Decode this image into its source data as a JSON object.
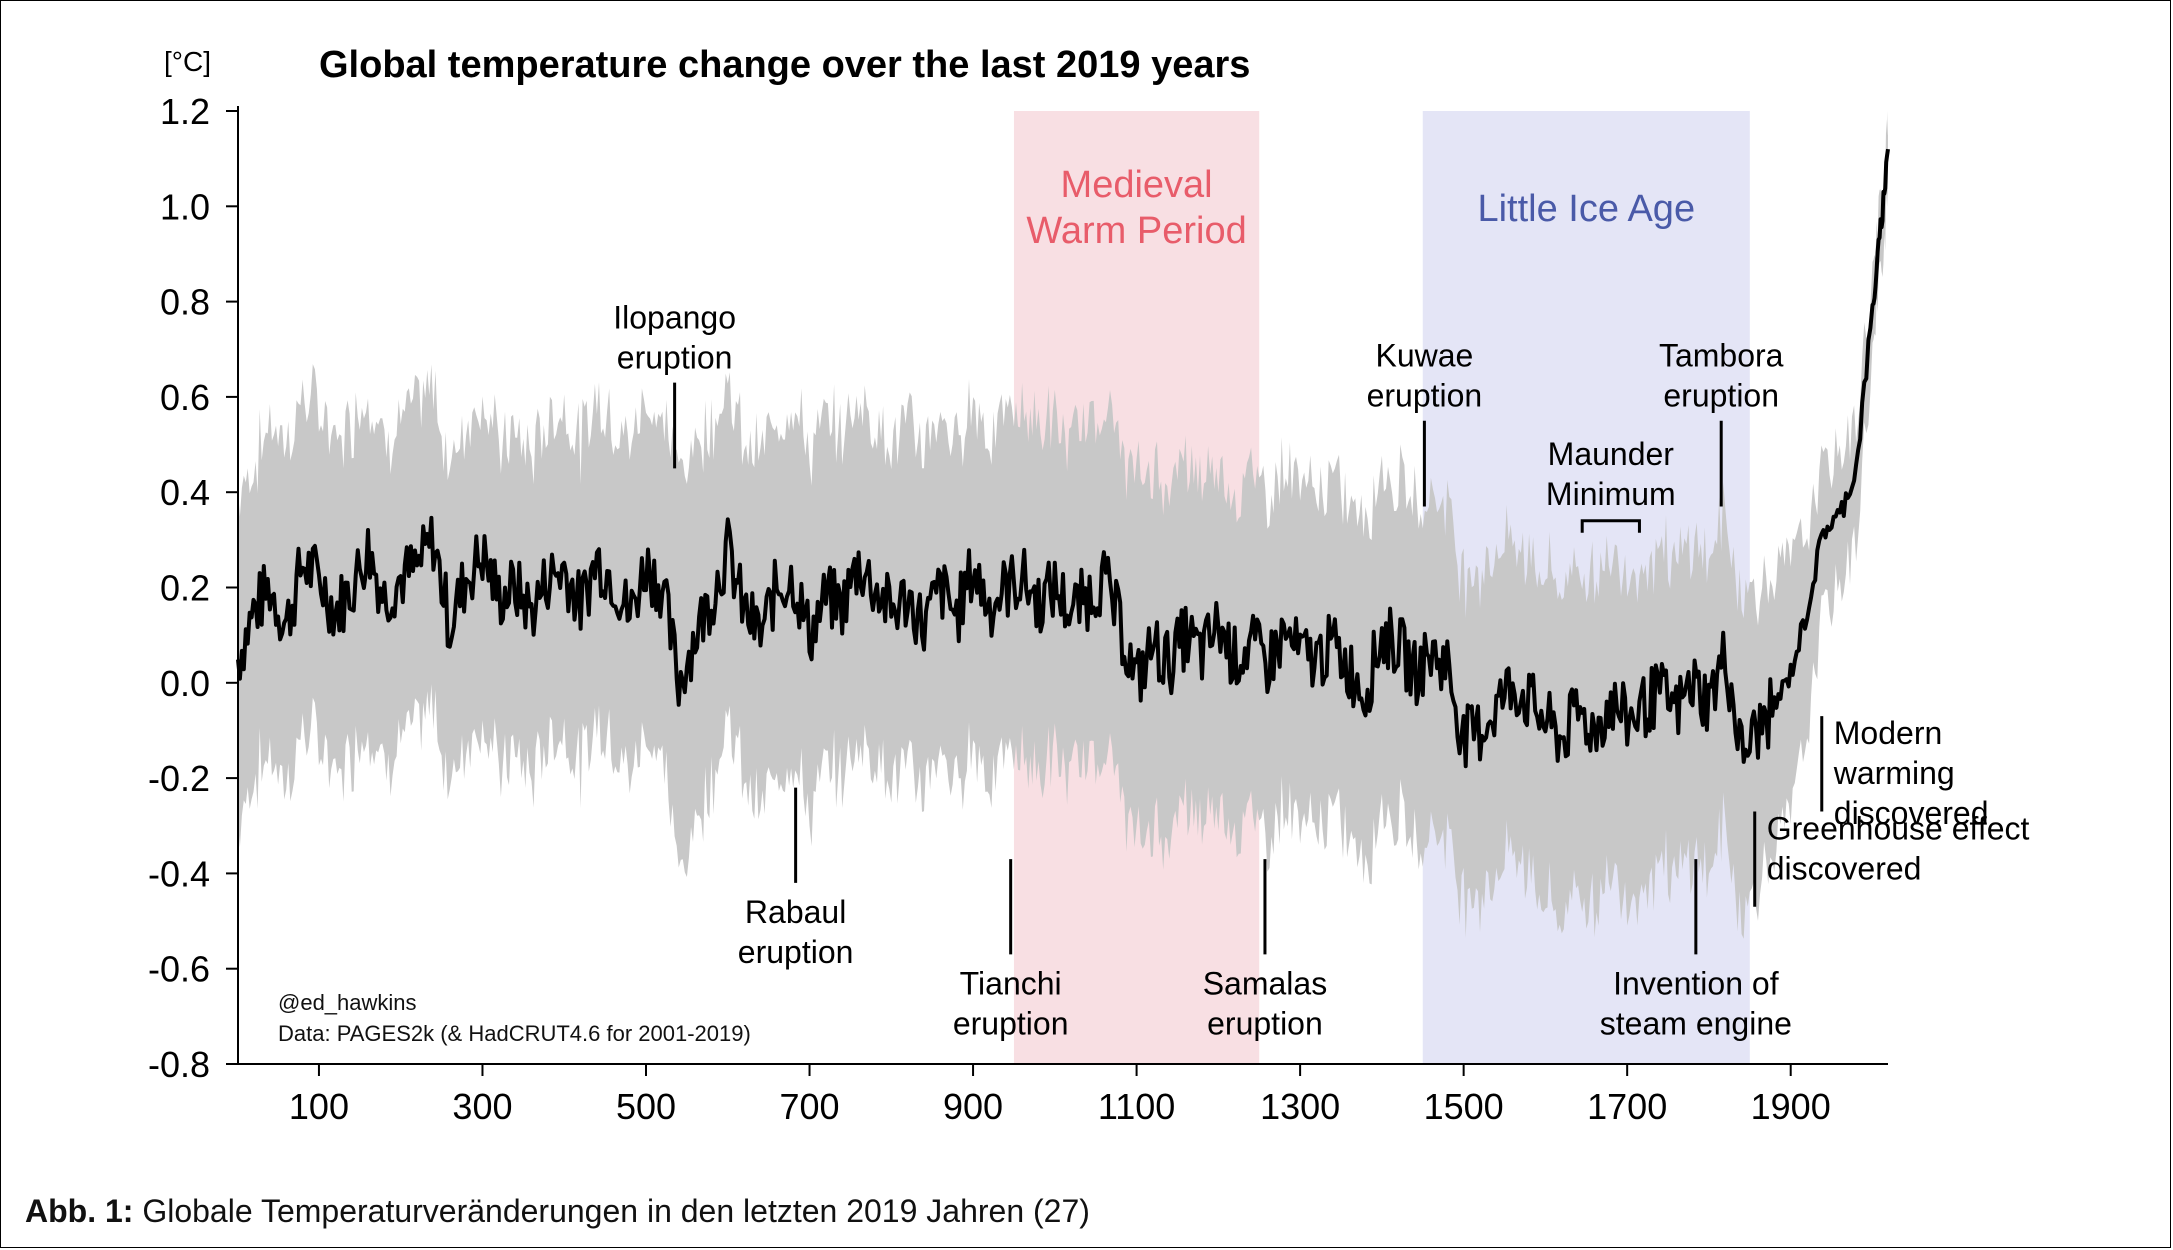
{
  "chart_data": {
    "type": "line",
    "title": "Global temperature change over the last 2019 years",
    "ylabel": "[°C]",
    "xlabel": "",
    "xlim": [
      1,
      2019
    ],
    "ylim": [
      -0.8,
      1.2
    ],
    "y_ticks": [
      "1.2",
      "1.0",
      "0.8",
      "0.6",
      "0.4",
      "0.2",
      "0.0",
      "-0.2",
      "-0.4",
      "-0.6",
      "-0.8"
    ],
    "x_ticks": [
      "100",
      "300",
      "500",
      "700",
      "900",
      "1100",
      "1300",
      "1500",
      "1700",
      "1900"
    ],
    "series": [
      {
        "x": [
          1,
          20,
          40,
          60,
          80,
          100,
          120,
          140,
          160,
          180,
          200,
          220,
          240,
          260,
          280,
          300,
          320,
          340,
          360,
          380,
          400,
          420,
          440,
          460,
          480,
          500,
          520,
          540,
          560,
          580,
          600,
          620,
          640,
          660,
          680,
          700,
          720,
          740,
          760,
          780,
          800,
          820,
          840,
          860,
          880,
          900,
          920,
          940,
          960,
          980,
          1000,
          1020,
          1040,
          1060,
          1080,
          1100,
          1120,
          1140,
          1160,
          1180,
          1200,
          1220,
          1240,
          1260,
          1280,
          1300,
          1320,
          1340,
          1360,
          1380,
          1400,
          1420,
          1440,
          1460,
          1480,
          1500,
          1520,
          1540,
          1560,
          1580,
          1600,
          1620,
          1640,
          1660,
          1680,
          1700,
          1720,
          1740,
          1760,
          1780,
          1800,
          1820,
          1840,
          1860,
          1880,
          1900,
          1920,
          1940,
          1960,
          1980,
          2000,
          2010,
          2019
        ],
        "y": [
          0.05,
          0.15,
          0.2,
          0.12,
          0.25,
          0.22,
          0.15,
          0.2,
          0.28,
          0.18,
          0.22,
          0.24,
          0.3,
          0.12,
          0.22,
          0.27,
          0.18,
          0.2,
          0.15,
          0.22,
          0.24,
          0.16,
          0.26,
          0.22,
          0.14,
          0.25,
          0.2,
          0.0,
          0.1,
          0.18,
          0.28,
          0.15,
          0.1,
          0.2,
          0.22,
          0.1,
          0.18,
          0.16,
          0.25,
          0.2,
          0.15,
          0.18,
          0.12,
          0.2,
          0.14,
          0.24,
          0.16,
          0.2,
          0.22,
          0.17,
          0.2,
          0.15,
          0.18,
          0.22,
          0.12,
          0.0,
          0.08,
          0.04,
          0.1,
          0.06,
          0.12,
          0.05,
          0.08,
          0.04,
          0.1,
          0.06,
          0.05,
          0.08,
          0.03,
          -0.02,
          0.1,
          0.08,
          0.02,
          0.06,
          0.04,
          -0.12,
          -0.1,
          -0.05,
          0.0,
          -0.04,
          -0.08,
          -0.12,
          -0.06,
          -0.1,
          -0.04,
          -0.08,
          -0.05,
          -0.02,
          -0.06,
          0.0,
          -0.04,
          0.06,
          -0.15,
          -0.1,
          -0.05,
          0.02,
          0.15,
          0.32,
          0.35,
          0.45,
          0.78,
          0.95,
          1.12
        ],
        "band_upper": [
          0.4,
          0.45,
          0.55,
          0.5,
          0.6,
          0.58,
          0.5,
          0.55,
          0.62,
          0.5,
          0.55,
          0.58,
          0.62,
          0.45,
          0.55,
          0.6,
          0.5,
          0.52,
          0.48,
          0.55,
          0.58,
          0.5,
          0.6,
          0.55,
          0.5,
          0.6,
          0.55,
          0.45,
          0.5,
          0.55,
          0.62,
          0.5,
          0.48,
          0.55,
          0.6,
          0.48,
          0.55,
          0.52,
          0.6,
          0.55,
          0.5,
          0.55,
          0.5,
          0.55,
          0.5,
          0.6,
          0.52,
          0.56,
          0.58,
          0.54,
          0.55,
          0.5,
          0.55,
          0.58,
          0.5,
          0.42,
          0.45,
          0.42,
          0.46,
          0.42,
          0.46,
          0.4,
          0.44,
          0.4,
          0.45,
          0.42,
          0.4,
          0.42,
          0.38,
          0.35,
          0.45,
          0.42,
          0.38,
          0.4,
          0.38,
          0.22,
          0.24,
          0.28,
          0.3,
          0.26,
          0.24,
          0.2,
          0.25,
          0.22,
          0.26,
          0.24,
          0.25,
          0.28,
          0.24,
          0.3,
          0.26,
          0.35,
          0.18,
          0.2,
          0.22,
          0.26,
          0.32,
          0.45,
          0.48,
          0.55,
          0.85,
          1.0,
          1.2
        ],
        "band_lower": [
          -0.3,
          -0.2,
          -0.15,
          -0.22,
          -0.1,
          -0.12,
          -0.2,
          -0.15,
          -0.08,
          -0.18,
          -0.12,
          -0.1,
          -0.05,
          -0.22,
          -0.12,
          -0.08,
          -0.18,
          -0.15,
          -0.2,
          -0.12,
          -0.1,
          -0.18,
          -0.08,
          -0.12,
          -0.2,
          -0.1,
          -0.15,
          -0.4,
          -0.3,
          -0.2,
          -0.08,
          -0.2,
          -0.28,
          -0.18,
          -0.15,
          -0.28,
          -0.18,
          -0.2,
          -0.12,
          -0.15,
          -0.2,
          -0.18,
          -0.22,
          -0.15,
          -0.22,
          -0.12,
          -0.2,
          -0.16,
          -0.14,
          -0.2,
          -0.15,
          -0.2,
          -0.16,
          -0.14,
          -0.22,
          -0.35,
          -0.3,
          -0.32,
          -0.26,
          -0.3,
          -0.25,
          -0.3,
          -0.28,
          -0.32,
          -0.26,
          -0.3,
          -0.3,
          -0.28,
          -0.32,
          -0.38,
          -0.26,
          -0.28,
          -0.34,
          -0.3,
          -0.32,
          -0.45,
          -0.44,
          -0.4,
          -0.35,
          -0.4,
          -0.45,
          -0.5,
          -0.42,
          -0.48,
          -0.4,
          -0.45,
          -0.42,
          -0.38,
          -0.42,
          -0.36,
          -0.4,
          -0.3,
          -0.5,
          -0.42,
          -0.35,
          -0.28,
          -0.1,
          0.15,
          0.2,
          0.3,
          0.68,
          0.85,
          1.05
        ]
      }
    ],
    "shaded_periods": [
      {
        "label": "Medieval\nWarm Period",
        "x_range": [
          950,
          1250
        ],
        "color": "#f8dfe3",
        "text_color": "#e85c6a"
      },
      {
        "label": "Little Ice Age",
        "x_range": [
          1450,
          1850
        ],
        "color": "#e4e5f6",
        "text_color": "#4a5aa8"
      }
    ],
    "annotations": [
      {
        "label": "Ilopango\neruption",
        "x": 535,
        "y": 0.45,
        "tick": [
          0.45,
          0.63
        ],
        "position": "above"
      },
      {
        "label": "Rabaul\neruption",
        "x": 683,
        "y": -0.22,
        "tick": [
          -0.42,
          -0.22
        ],
        "position": "below"
      },
      {
        "label": "Tianchi\neruption",
        "x": 946,
        "y": -0.37,
        "tick": [
          -0.57,
          -0.37
        ],
        "position": "below"
      },
      {
        "label": "Samalas\neruption",
        "x": 1257,
        "y": -0.37,
        "tick": [
          -0.57,
          -0.37
        ],
        "position": "below"
      },
      {
        "label": "Kuwae\neruption",
        "x": 1452,
        "y": 0.37,
        "tick": [
          0.37,
          0.55
        ],
        "position": "above"
      },
      {
        "label": "Tambora\neruption",
        "x": 1815,
        "y": 0.37,
        "tick": [
          0.37,
          0.55
        ],
        "position": "above"
      },
      {
        "label": "Maunder\nMinimum",
        "x": 1680,
        "y": 0.34,
        "bracket": [
          1645,
          1715
        ],
        "position": "above"
      },
      {
        "label": "Invention of\nsteam engine",
        "x": 1784,
        "y": -0.37,
        "tick": [
          -0.57,
          -0.37
        ],
        "position": "below"
      },
      {
        "label": "Greenhouse effect\ndiscovered",
        "x": 1856,
        "y": -0.27,
        "tick": [
          -0.47,
          -0.27
        ],
        "position": "right"
      },
      {
        "label": "Modern\nwarming\ndiscovered",
        "x": 1938,
        "y": -0.07,
        "tick": [
          -0.27,
          -0.07
        ],
        "position": "right"
      }
    ],
    "credit": "@ed_hawkins",
    "source": "Data: PAGES2k (& HadCRUT4.6 for 2001-2019)",
    "line_color": "#000000",
    "band_color": "#c8c8c8"
  },
  "caption": {
    "label": "Abb. 1:",
    "text": "Globale Temperaturveränderungen in den letzten 2019 Jahren (27)"
  }
}
